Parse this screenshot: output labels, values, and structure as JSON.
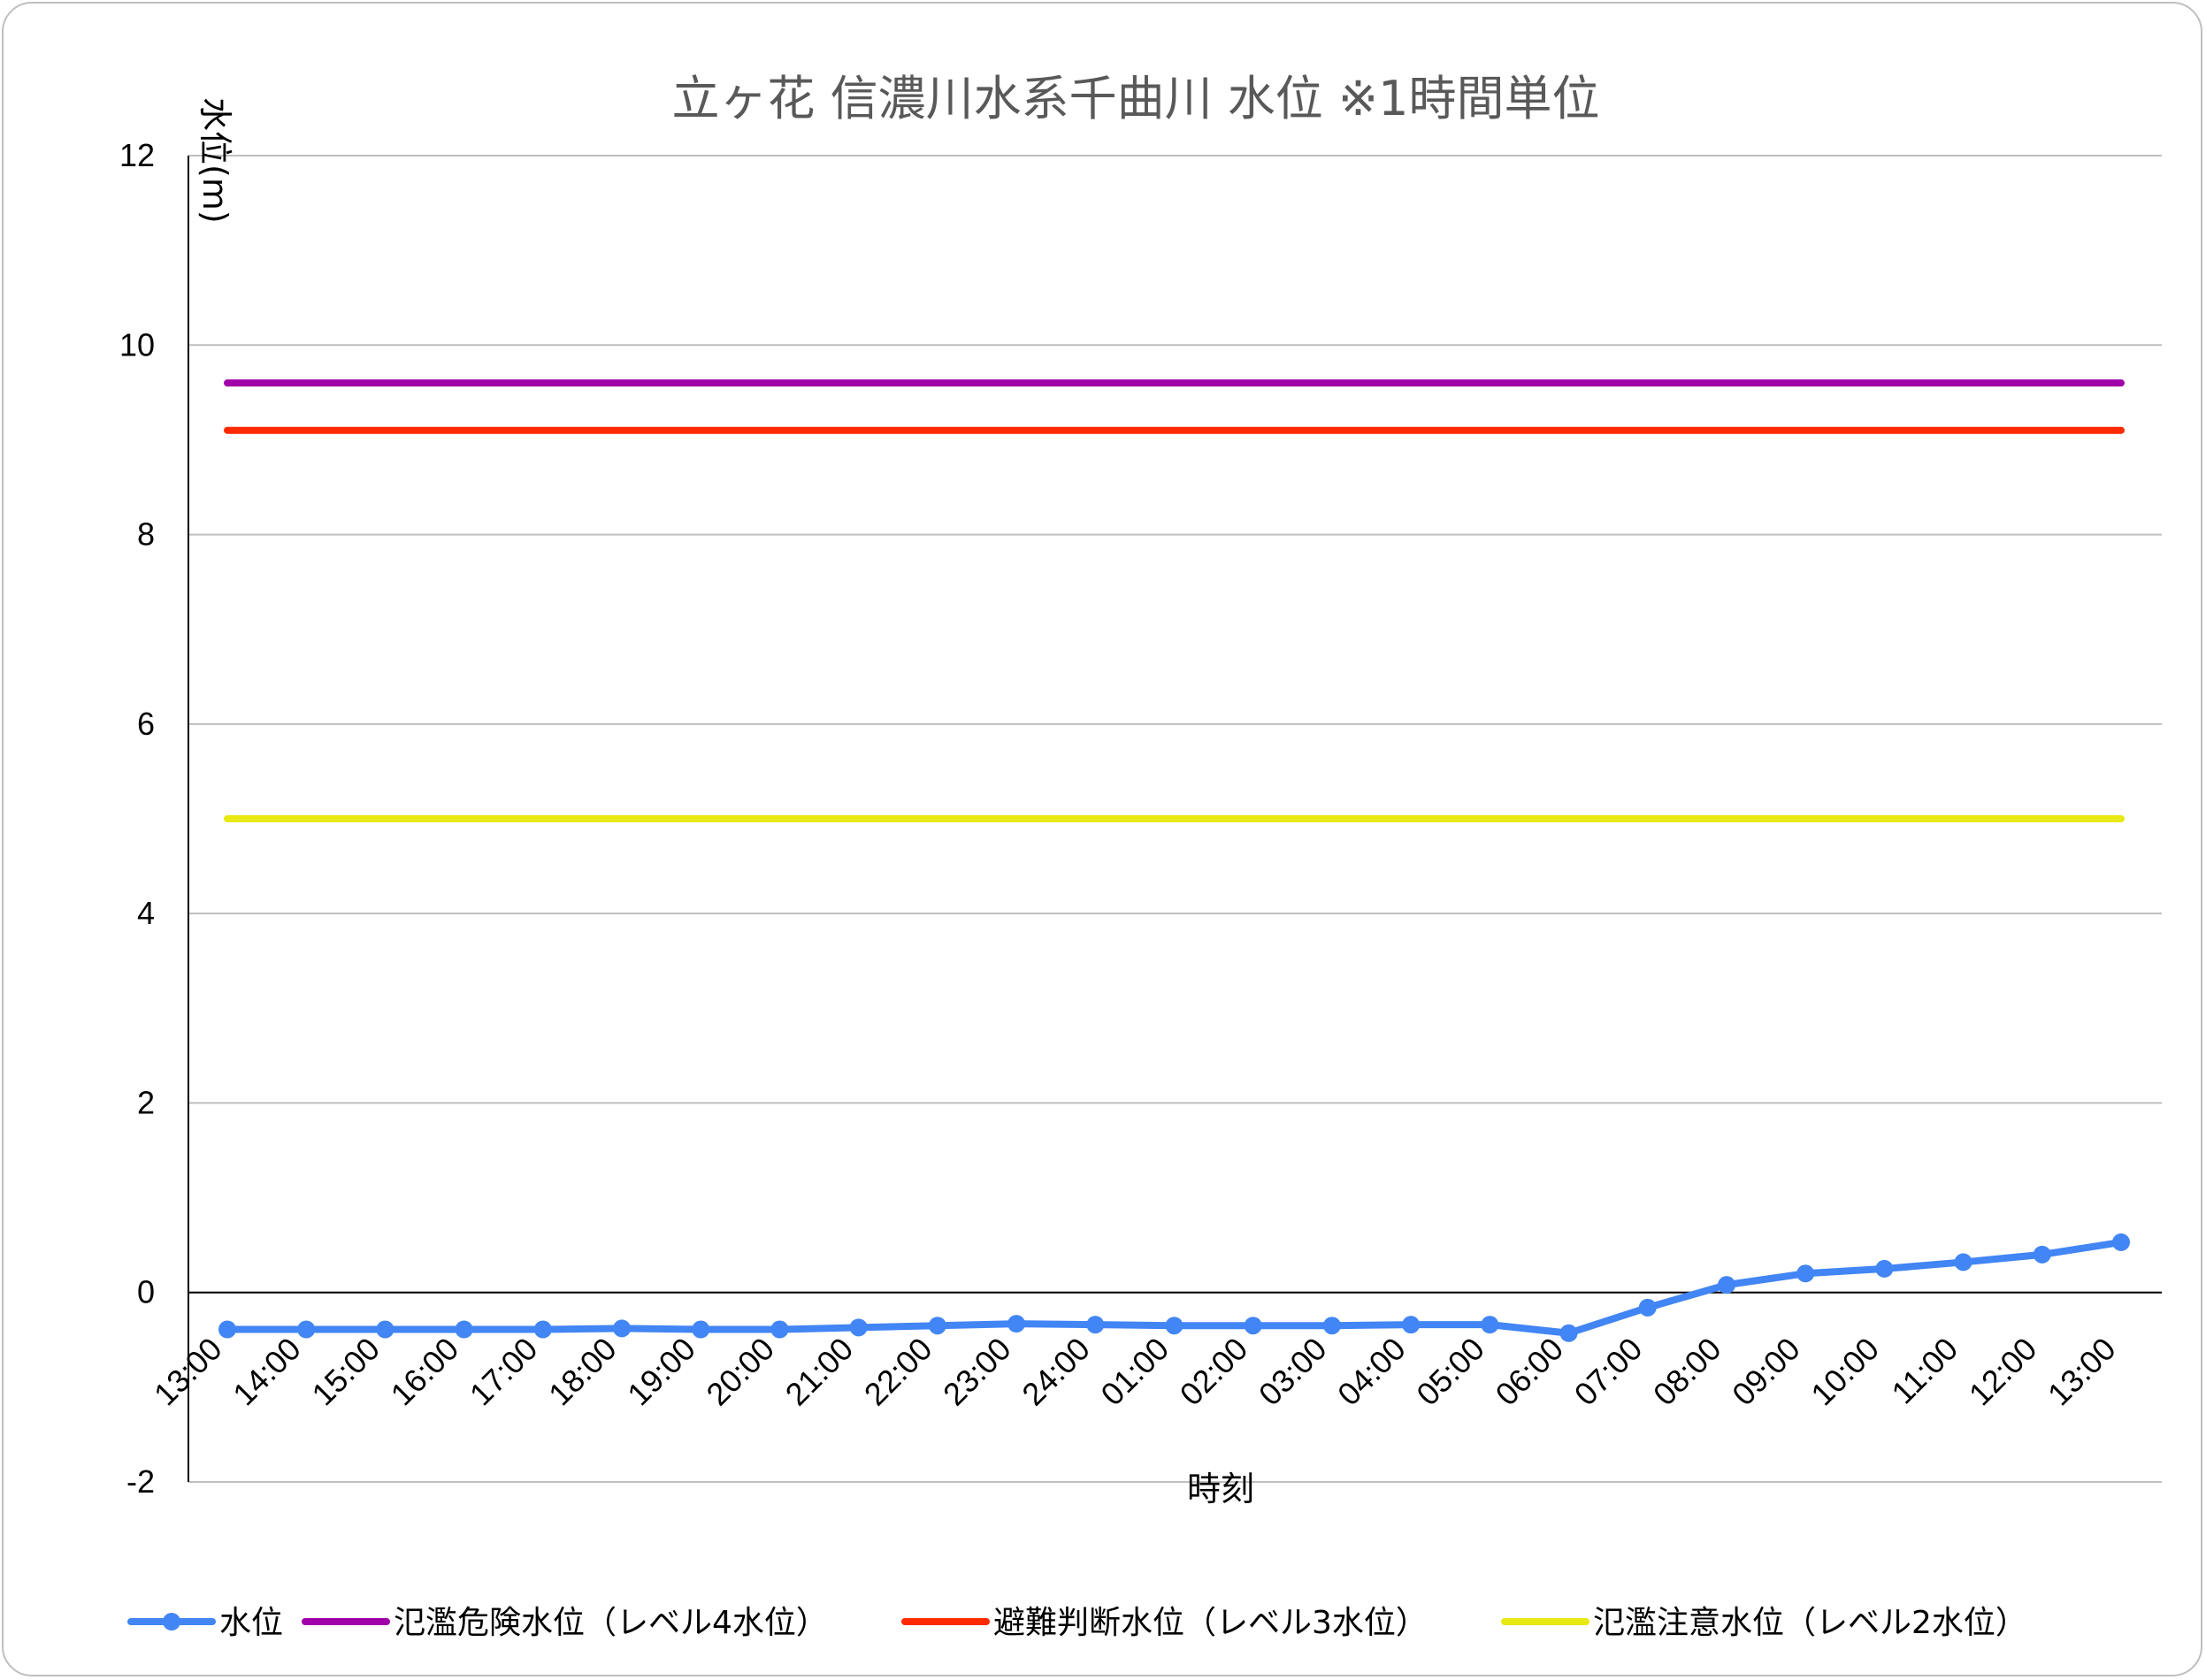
{
  "chart_data": {
    "type": "line",
    "title": "立ヶ花  信濃川水系千曲川  水位 ※1時間単位",
    "xlabel": "時刻",
    "ylabel": "水位(m)",
    "ylim": [
      -2,
      12
    ],
    "yticks": [
      -2,
      0,
      2,
      4,
      6,
      8,
      10,
      12
    ],
    "grid": true,
    "legend_position": "bottom",
    "categories": [
      "13:00",
      "14:00",
      "15:00",
      "16:00",
      "17:00",
      "18:00",
      "19:00",
      "20:00",
      "21:00",
      "22:00",
      "23:00",
      "24:00",
      "01:00",
      "02:00",
      "03:00",
      "04:00",
      "05:00",
      "06:00",
      "07:00",
      "08:00",
      "09:00",
      "10:00",
      "11:00",
      "12:00",
      "13:00"
    ],
    "series": [
      {
        "name": "水位",
        "color": "#4285f4",
        "marker": "circle",
        "values": [
          -0.39,
          -0.39,
          -0.39,
          -0.39,
          -0.39,
          -0.38,
          -0.39,
          -0.39,
          -0.37,
          -0.35,
          -0.33,
          -0.34,
          -0.35,
          -0.35,
          -0.35,
          -0.34,
          -0.34,
          -0.43,
          -0.16,
          0.08,
          0.2,
          0.25,
          0.32,
          0.4,
          0.53
        ]
      },
      {
        "name": "氾濫危険水位（レベル4水位）",
        "color": "#a000a8",
        "constant": 9.6
      },
      {
        "name": "避難判断水位（レベル3水位）",
        "color": "#ff2a00",
        "constant": 9.1
      },
      {
        "name": "氾濫注意水位（レベル2水位）",
        "color": "#e8e812",
        "constant": 5.0
      }
    ]
  }
}
